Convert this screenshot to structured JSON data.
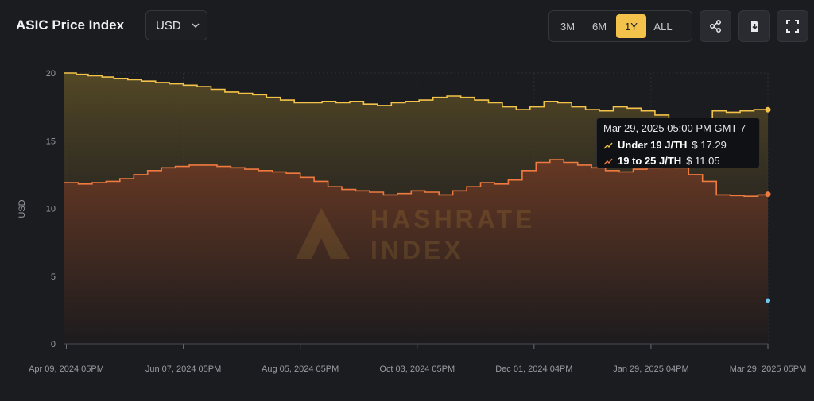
{
  "header": {
    "title": "ASIC Price Index",
    "currency": "USD",
    "ranges": [
      "3M",
      "6M",
      "1Y",
      "ALL"
    ],
    "active_range": "1Y"
  },
  "icons": {
    "currency_dropdown": "chevron-down-icon",
    "share": "share-icon",
    "download": "download-icon",
    "fullscreen": "fullscreen-icon"
  },
  "colors": {
    "under19": "#f3c24a",
    "range19to25": "#ef7a40",
    "accent": "#f3c24a",
    "extra_point": "#6ec6f0"
  },
  "watermark": {
    "line1": "HASHRATE",
    "line2": "INDEX"
  },
  "tooltip": {
    "date": "Mar 29, 2025 05:00 PM GMT-7",
    "rows": [
      {
        "label": "Under 19 J/TH",
        "value": "$ 17.29"
      },
      {
        "label": "19 to 25 J/TH",
        "value": "$ 11.05"
      }
    ]
  },
  "chart_data": {
    "type": "area",
    "ylabel": "USD",
    "ylim": [
      0,
      20
    ],
    "yticks": [
      0,
      5,
      10,
      15,
      20
    ],
    "xlim": [
      "2024-04-08",
      "2025-03-29"
    ],
    "x_ticks": [
      {
        "date": "2024-04-09",
        "label": "Apr 09, 2024 05PM"
      },
      {
        "date": "2024-06-07",
        "label": "Jun 07, 2024 05PM"
      },
      {
        "date": "2024-08-05",
        "label": "Aug 05, 2024 05PM"
      },
      {
        "date": "2024-10-03",
        "label": "Oct 03, 2024 05PM"
      },
      {
        "date": "2024-12-01",
        "label": "Dec 01, 2024 04PM"
      },
      {
        "date": "2025-01-29",
        "label": "Jan 29, 2025 04PM"
      },
      {
        "date": "2025-03-29",
        "label": "Mar 29, 2025 05PM"
      }
    ],
    "grid": true,
    "step": true,
    "series": [
      {
        "name": "Under 19 J/TH",
        "color": "#f3c24a",
        "points": [
          [
            "2024-04-08",
            20.0
          ],
          [
            "2024-04-14",
            19.9
          ],
          [
            "2024-04-20",
            19.8
          ],
          [
            "2024-04-27",
            19.7
          ],
          [
            "2024-05-03",
            19.6
          ],
          [
            "2024-05-10",
            19.5
          ],
          [
            "2024-05-17",
            19.4
          ],
          [
            "2024-05-24",
            19.3
          ],
          [
            "2024-05-31",
            19.2
          ],
          [
            "2024-06-07",
            19.1
          ],
          [
            "2024-06-14",
            19.0
          ],
          [
            "2024-06-21",
            18.8
          ],
          [
            "2024-06-28",
            18.6
          ],
          [
            "2024-07-05",
            18.5
          ],
          [
            "2024-07-12",
            18.4
          ],
          [
            "2024-07-19",
            18.2
          ],
          [
            "2024-07-26",
            18.0
          ],
          [
            "2024-08-02",
            17.8
          ],
          [
            "2024-08-09",
            17.8
          ],
          [
            "2024-08-16",
            17.9
          ],
          [
            "2024-08-23",
            17.8
          ],
          [
            "2024-08-30",
            17.9
          ],
          [
            "2024-09-06",
            17.7
          ],
          [
            "2024-09-13",
            17.6
          ],
          [
            "2024-09-20",
            17.8
          ],
          [
            "2024-09-27",
            17.9
          ],
          [
            "2024-10-04",
            18.0
          ],
          [
            "2024-10-11",
            18.2
          ],
          [
            "2024-10-18",
            18.3
          ],
          [
            "2024-10-25",
            18.2
          ],
          [
            "2024-11-01",
            18.0
          ],
          [
            "2024-11-08",
            17.8
          ],
          [
            "2024-11-15",
            17.5
          ],
          [
            "2024-11-22",
            17.3
          ],
          [
            "2024-11-29",
            17.5
          ],
          [
            "2024-12-06",
            17.9
          ],
          [
            "2024-12-13",
            17.8
          ],
          [
            "2024-12-20",
            17.5
          ],
          [
            "2024-12-27",
            17.3
          ],
          [
            "2025-01-03",
            17.2
          ],
          [
            "2025-01-10",
            17.5
          ],
          [
            "2025-01-17",
            17.4
          ],
          [
            "2025-01-24",
            17.2
          ],
          [
            "2025-01-31",
            16.9
          ],
          [
            "2025-02-07",
            15.8
          ],
          [
            "2025-02-14",
            15.4
          ],
          [
            "2025-02-21",
            15.0
          ],
          [
            "2025-03-01",
            17.2
          ],
          [
            "2025-03-08",
            17.1
          ],
          [
            "2025-03-15",
            17.2
          ],
          [
            "2025-03-22",
            17.3
          ],
          [
            "2025-03-29",
            17.29
          ]
        ]
      },
      {
        "name": "19 to 25 J/TH",
        "color": "#ef7a40",
        "points": [
          [
            "2024-04-08",
            11.9
          ],
          [
            "2024-04-15",
            11.8
          ],
          [
            "2024-04-22",
            11.9
          ],
          [
            "2024-04-29",
            12.0
          ],
          [
            "2024-05-06",
            12.2
          ],
          [
            "2024-05-13",
            12.5
          ],
          [
            "2024-05-20",
            12.8
          ],
          [
            "2024-05-27",
            13.0
          ],
          [
            "2024-06-03",
            13.1
          ],
          [
            "2024-06-10",
            13.2
          ],
          [
            "2024-06-17",
            13.2
          ],
          [
            "2024-06-24",
            13.1
          ],
          [
            "2024-07-01",
            13.0
          ],
          [
            "2024-07-08",
            12.9
          ],
          [
            "2024-07-15",
            12.8
          ],
          [
            "2024-07-22",
            12.7
          ],
          [
            "2024-07-29",
            12.6
          ],
          [
            "2024-08-05",
            12.3
          ],
          [
            "2024-08-12",
            12.0
          ],
          [
            "2024-08-19",
            11.6
          ],
          [
            "2024-08-26",
            11.4
          ],
          [
            "2024-09-02",
            11.3
          ],
          [
            "2024-09-09",
            11.2
          ],
          [
            "2024-09-16",
            11.0
          ],
          [
            "2024-09-23",
            11.1
          ],
          [
            "2024-09-30",
            11.3
          ],
          [
            "2024-10-07",
            11.2
          ],
          [
            "2024-10-14",
            11.0
          ],
          [
            "2024-10-21",
            11.3
          ],
          [
            "2024-10-28",
            11.6
          ],
          [
            "2024-11-04",
            11.9
          ],
          [
            "2024-11-11",
            11.8
          ],
          [
            "2024-11-18",
            12.1
          ],
          [
            "2024-11-25",
            12.8
          ],
          [
            "2024-12-02",
            13.4
          ],
          [
            "2024-12-09",
            13.6
          ],
          [
            "2024-12-16",
            13.4
          ],
          [
            "2024-12-23",
            13.2
          ],
          [
            "2024-12-30",
            13.0
          ],
          [
            "2025-01-06",
            12.8
          ],
          [
            "2025-01-13",
            12.7
          ],
          [
            "2025-01-20",
            12.9
          ],
          [
            "2025-01-27",
            13.0
          ],
          [
            "2025-02-03",
            13.2
          ],
          [
            "2025-02-10",
            13.0
          ],
          [
            "2025-02-17",
            12.5
          ],
          [
            "2025-02-24",
            12.0
          ],
          [
            "2025-03-03",
            11.0
          ],
          [
            "2025-03-10",
            10.95
          ],
          [
            "2025-03-17",
            10.9
          ],
          [
            "2025-03-24",
            11.0
          ],
          [
            "2025-03-29",
            11.05
          ]
        ]
      }
    ],
    "extra_points": [
      {
        "date": "2025-03-29",
        "value": 3.2
      }
    ]
  }
}
